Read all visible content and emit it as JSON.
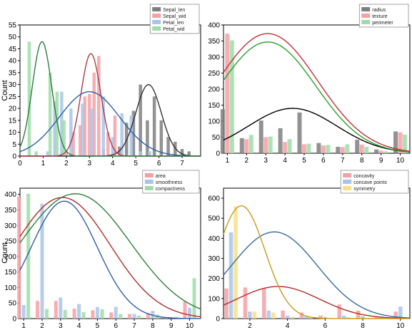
{
  "chart_data": [
    {
      "type": "bar",
      "title": "",
      "xlabel": "",
      "ylabel": "Count",
      "xlim": [
        0,
        7.8
      ],
      "ylim": [
        0,
        55
      ],
      "xticks": [
        0,
        1,
        2,
        3,
        4,
        5,
        6,
        7
      ],
      "yticks": [
        0,
        5,
        10,
        15,
        20,
        25,
        30,
        35,
        40,
        45,
        50,
        55
      ],
      "grid": false,
      "legend_position": "top-right",
      "series": [
        {
          "name": "Sepal_len",
          "color": "#7f7f7f",
          "x": [
            4.3,
            4.6,
            4.9,
            5.2,
            5.5,
            5.8,
            6.1,
            6.4,
            6.7,
            7.0,
            7.3
          ],
          "values": [
            4,
            14,
            19,
            30,
            15,
            25,
            15,
            8,
            6,
            3,
            2
          ],
          "fit": {
            "mean": 5.55,
            "sd": 0.55,
            "peak": 30,
            "color": "#333333"
          }
        },
        {
          "name": "Sepal_wid",
          "color": "#f4a0a5",
          "x": [
            2.0,
            2.3,
            2.6,
            2.8,
            3.0,
            3.2,
            3.4,
            3.6,
            3.8,
            4.1,
            4.3
          ],
          "values": [
            2,
            10,
            13,
            25,
            26,
            35,
            42,
            3,
            10,
            17,
            1
          ],
          "fit": {
            "mean": 3.06,
            "sd": 0.43,
            "peak": 43,
            "color": "#b03a48"
          }
        },
        {
          "name": "Petal_len",
          "color": "#a9c4e8",
          "x": [
            1.2,
            1.5,
            1.8,
            2.2,
            2.7,
            3.1,
            3.6,
            4.0,
            4.4,
            4.8,
            5.2,
            5.6
          ],
          "values": [
            2,
            23,
            27,
            20,
            22,
            20,
            25,
            8,
            18,
            17,
            2,
            2
          ],
          "fit": {
            "mean": 3.0,
            "sd": 1.3,
            "peak": 27,
            "color": "#2f5ea8"
          }
        },
        {
          "name": "Petal_wid",
          "color": "#9fdca9",
          "x": [
            0.4,
            0.7,
            1.3,
            1.6,
            1.9
          ],
          "values": [
            48,
            2,
            35,
            27,
            15
          ],
          "fit": {
            "mean": 0.95,
            "sd": 0.42,
            "peak": 48,
            "color": "#2e7d3e"
          }
        }
      ]
    },
    {
      "type": "bar",
      "title": "",
      "xlabel": "",
      "ylabel": "",
      "xlim": [
        0.8,
        10.5
      ],
      "ylim": [
        0,
        400
      ],
      "xticks": [
        1,
        2,
        3,
        4,
        5,
        6,
        7,
        8,
        9,
        10
      ],
      "yticks": [
        0,
        50,
        100,
        150,
        200,
        250,
        300,
        350,
        400
      ],
      "grid": false,
      "legend_position": "top-right",
      "categories": [
        1,
        2,
        3,
        4,
        5,
        6,
        7,
        8,
        9,
        10
      ],
      "series": [
        {
          "name": "radius",
          "color": "#7f7f7f",
          "values": [
            137,
            47,
            102,
            78,
            127,
            32,
            20,
            42,
            12,
            68
          ],
          "fit": {
            "mean": 4.4,
            "sd": 2.3,
            "peak": 140,
            "color": "#000000"
          }
        },
        {
          "name": "texture",
          "color": "#f4a0a5",
          "values": [
            373,
            44,
            50,
            35,
            28,
            24,
            19,
            27,
            8,
            65
          ],
          "fit": {
            "mean": 3.1,
            "sd": 2.6,
            "peak": 373,
            "color": "#c0303a"
          }
        },
        {
          "name": "perimeter",
          "color": "#9fdca9",
          "values": [
            352,
            57,
            52,
            44,
            30,
            26,
            28,
            20,
            6,
            58
          ],
          "fit": {
            "mean": 3.1,
            "sd": 2.5,
            "peak": 347,
            "color": "#2aa02a"
          }
        }
      ]
    },
    {
      "type": "bar",
      "title": "",
      "xlabel": "",
      "ylabel": "Count",
      "xlim": [
        0.8,
        10.6
      ],
      "ylim": [
        0,
        420
      ],
      "xticks": [
        1,
        2,
        3,
        4,
        5,
        6,
        7,
        8,
        9,
        10
      ],
      "yticks": [
        0,
        50,
        100,
        150,
        200,
        250,
        300,
        350,
        400
      ],
      "grid": false,
      "legend_position": "top-right",
      "categories": [
        1,
        2,
        3,
        4,
        5,
        6,
        7,
        8,
        9,
        10
      ],
      "series": [
        {
          "name": "area",
          "color": "#f4a0a5",
          "values": [
            393,
            57,
            57,
            32,
            27,
            20,
            15,
            18,
            4,
            55
          ],
          "fit": {
            "mean": 3.1,
            "sd": 2.6,
            "peak": 390,
            "color": "#b22a2a"
          }
        },
        {
          "name": "smoothness",
          "color": "#a9c4e8",
          "values": [
            44,
            370,
            68,
            47,
            37,
            38,
            15,
            25,
            5,
            35
          ],
          "fit": {
            "mean": 3.2,
            "sd": 1.8,
            "peak": 378,
            "color": "#2f5ea8"
          }
        },
        {
          "name": "compactness",
          "color": "#9fdca9",
          "values": [
            402,
            31,
            28,
            21,
            30,
            15,
            10,
            13,
            5,
            130
          ],
          "fit": {
            "mean": 3.8,
            "sd": 3.0,
            "peak": 402,
            "color": "#2e7d3e"
          }
        }
      ]
    },
    {
      "type": "bar",
      "title": "",
      "xlabel": "",
      "ylabel": "",
      "xlim": [
        0.6,
        10.5
      ],
      "ylim": [
        0,
        650
      ],
      "xticks": [
        2,
        4,
        6,
        8,
        10
      ],
      "yticks": [
        0,
        100,
        200,
        300,
        400,
        500,
        600
      ],
      "grid": false,
      "legend_position": "top-right",
      "categories": [
        1,
        2,
        3,
        4,
        5,
        6,
        7,
        8,
        9,
        10
      ],
      "series": [
        {
          "name": "concavity",
          "color": "#f4a0a5",
          "values": [
            150,
            155,
            150,
            40,
            30,
            15,
            70,
            40,
            10,
            35
          ],
          "fit": {
            "mean": 3.5,
            "sd": 2.2,
            "peak": 160,
            "color": "#b22a2a"
          }
        },
        {
          "name": "concave points",
          "color": "#a9c4e8",
          "values": [
            430,
            35,
            40,
            15,
            10,
            8,
            15,
            12,
            10,
            60
          ],
          "fit": {
            "mean": 3.3,
            "sd": 2.3,
            "peak": 432,
            "color": "#3a6a96"
          }
        },
        {
          "name": "symmetry",
          "color": "#f6e08a",
          "values": [
            560,
            35,
            30,
            10,
            5,
            3,
            8,
            2,
            1,
            2
          ],
          "fit": {
            "mean": 1.55,
            "sd": 1.25,
            "peak": 562,
            "color": "#c99a1a"
          }
        }
      ]
    }
  ]
}
